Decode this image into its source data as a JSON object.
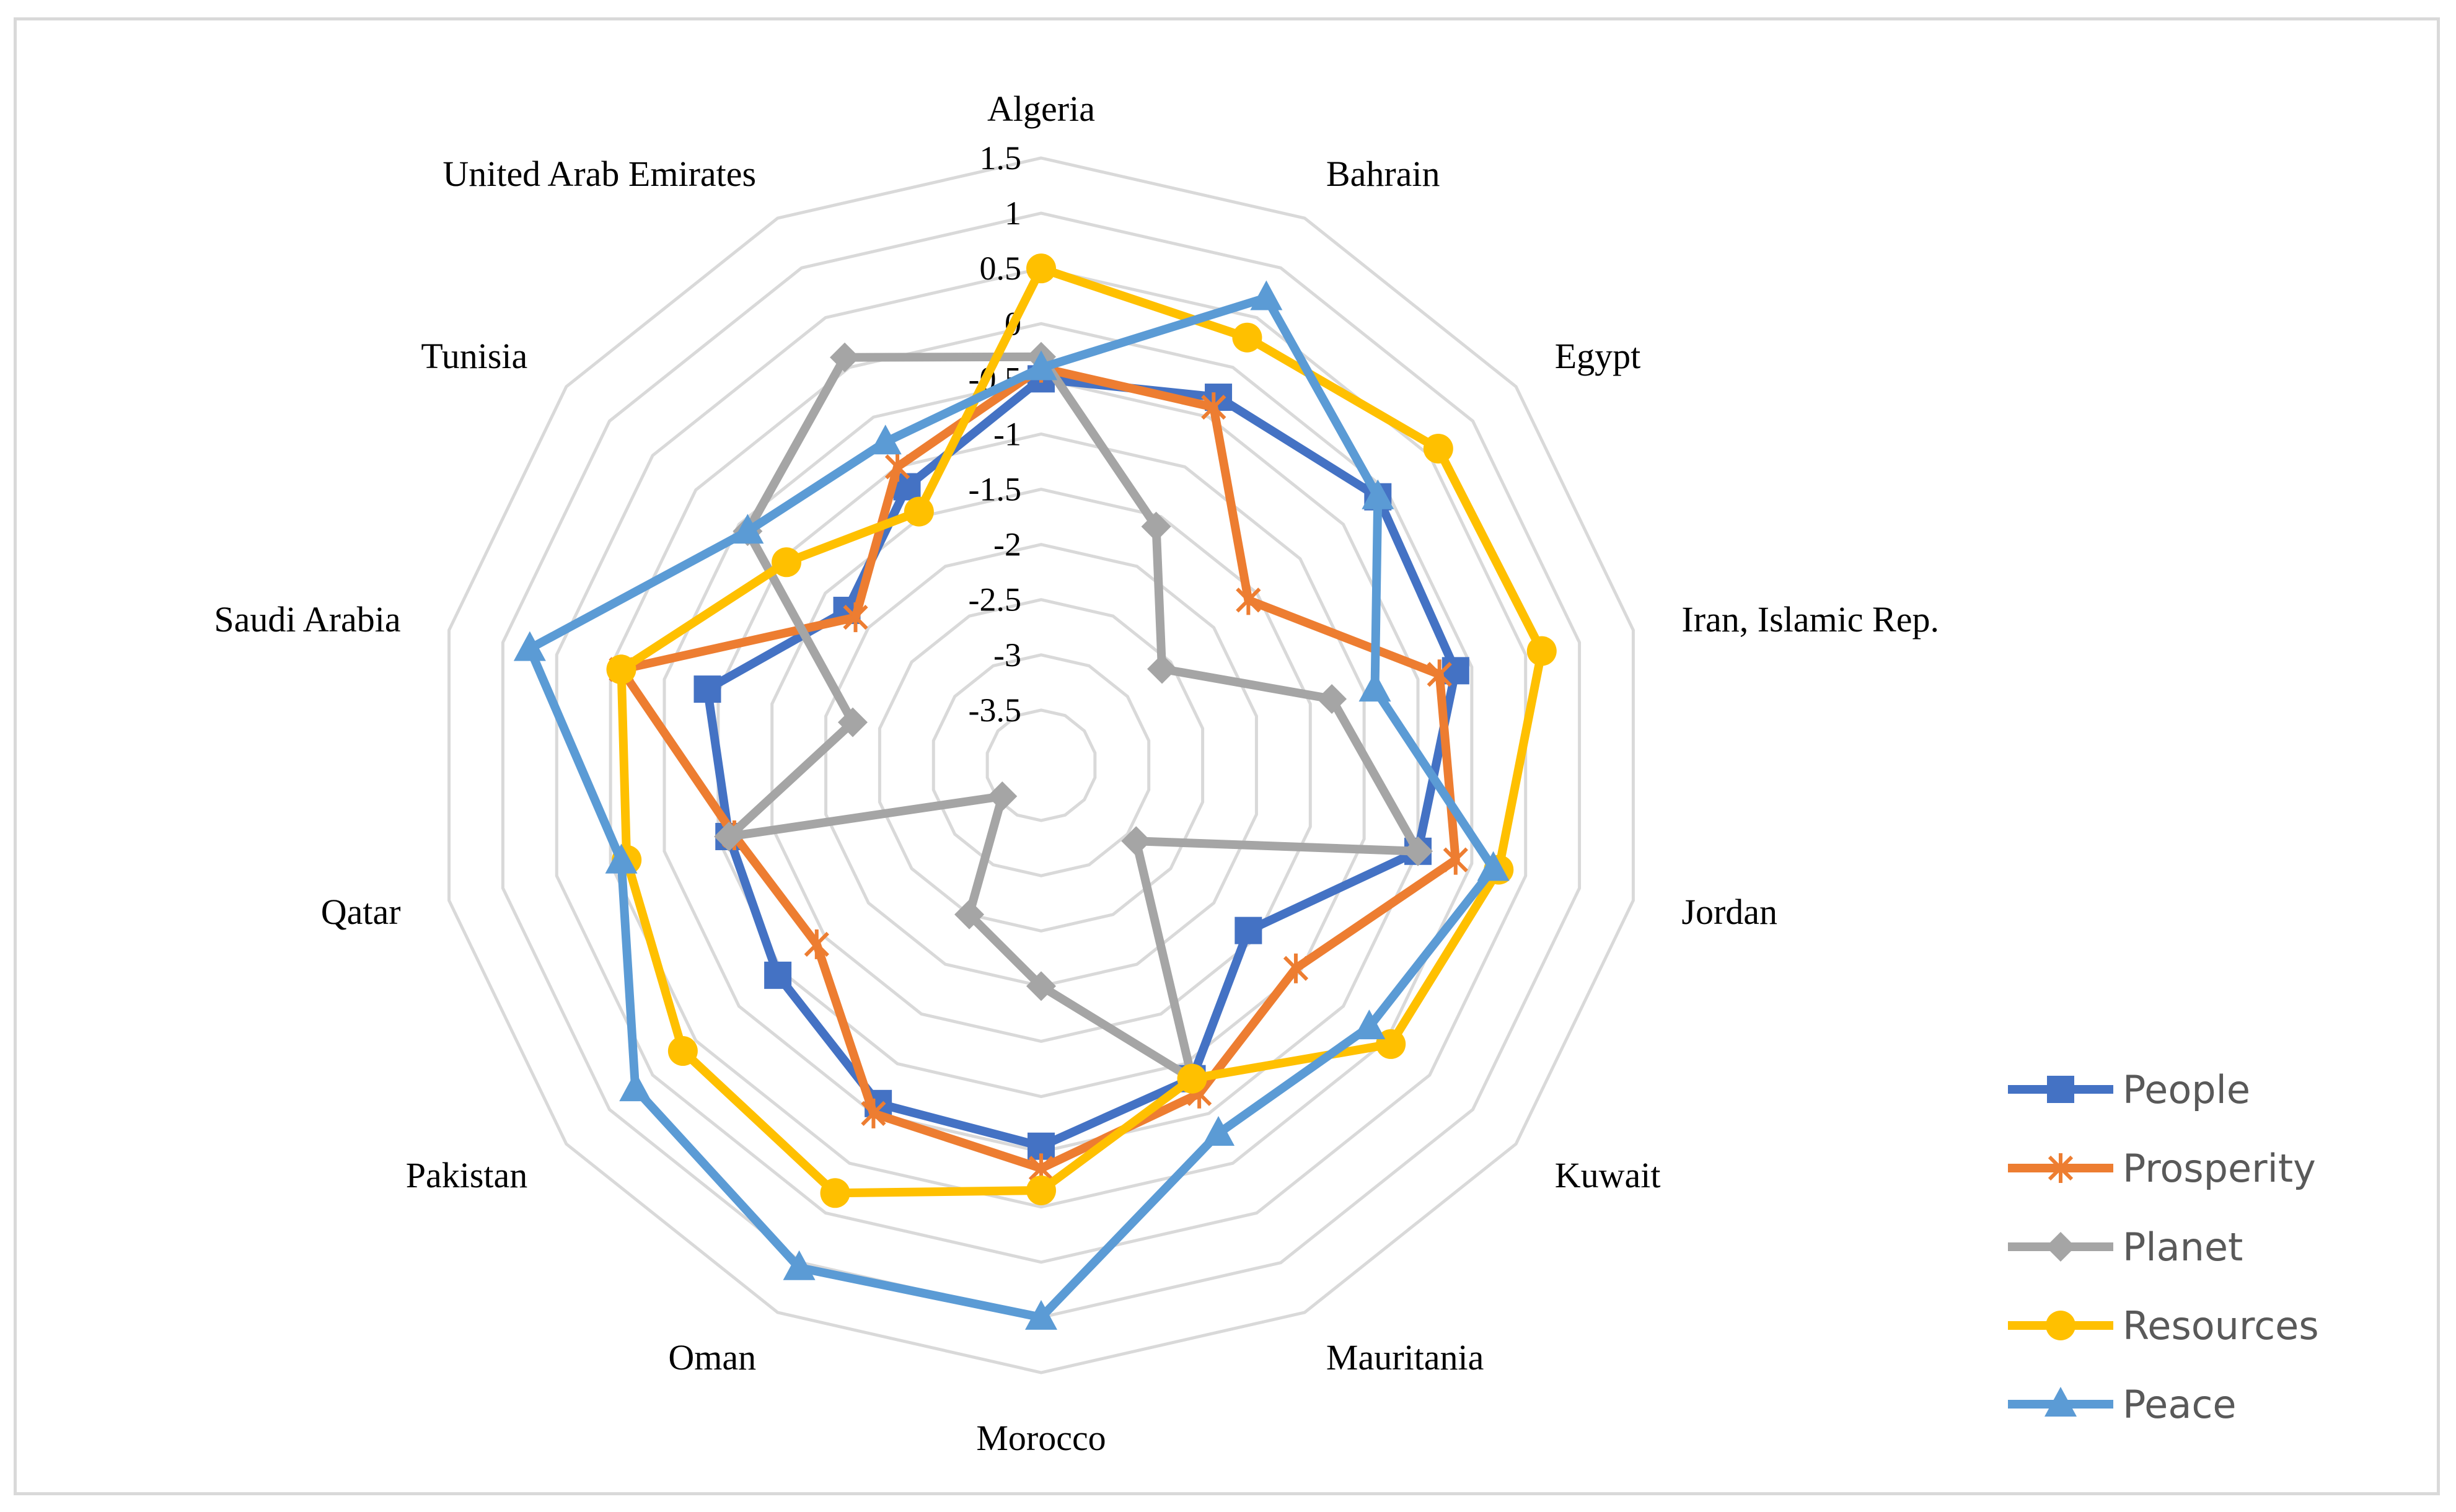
{
  "chart_data": {
    "type": "radar",
    "categories": [
      "Algeria",
      "Bahrain",
      "Egypt",
      "Iran, Islamic Rep.",
      "Jordan",
      "Kuwait",
      "Mauritania",
      "Morocco",
      "Oman",
      "Pakistan",
      "Qatar",
      "Saudi Arabia",
      "Tunisia",
      "United Arab Emirates"
    ],
    "rlim": [
      -4,
      1.5
    ],
    "ticks": [
      1.5,
      1,
      0.5,
      0,
      -0.5,
      -1,
      -1.5,
      -2,
      -2.5,
      -3,
      -3.5
    ],
    "tick_labels": [
      "1.5",
      "1",
      "0.5",
      "0",
      "-0.5",
      "-1",
      "-1.5",
      "-2",
      "-2.5",
      "-3",
      "-3.5"
    ],
    "grid": true,
    "legend_position": "right",
    "series": [
      {
        "name": "People",
        "color": "#4472c4",
        "marker": "square",
        "values": [
          -0.5,
          -0.3,
          -0.1,
          -0.15,
          -0.5,
          -1.6,
          -0.85,
          -0.55,
          -0.6,
          -0.95,
          -1.1,
          -0.9,
          -1.75,
          -1.2
        ]
      },
      {
        "name": "Prosperity",
        "color": "#ed7d31",
        "marker": "x",
        "values": [
          -0.4,
          -0.4,
          -1.6,
          -0.3,
          -0.15,
          -1.05,
          -0.7,
          -0.35,
          -0.5,
          -1.4,
          -1.15,
          -0.1,
          -1.85,
          -1.0
        ]
      },
      {
        "name": "Planet",
        "color": "#a5a5a5",
        "marker": "diamond",
        "values": [
          -0.3,
          -1.6,
          -2.6,
          -1.3,
          -0.5,
          -2.9,
          -0.85,
          -2.0,
          -2.5,
          -3.55,
          -1.1,
          -2.25,
          -0.6,
          0.1
        ]
      },
      {
        "name": "Resources",
        "color": "#ffc000",
        "marker": "circle",
        "values": [
          0.5,
          0.3,
          0.6,
          0.65,
          0.25,
          0.05,
          -0.85,
          -0.15,
          0.3,
          0.15,
          -0.15,
          -0.1,
          -1.05,
          -1.45
        ]
      },
      {
        "name": "Peace",
        "color": "#5b9bd5",
        "marker": "triangle",
        "values": [
          -0.4,
          0.7,
          -0.1,
          -0.9,
          0.2,
          -0.2,
          -0.3,
          1.0,
          1.05,
          0.7,
          -0.1,
          0.75,
          -0.6,
          -0.75
        ]
      }
    ]
  }
}
